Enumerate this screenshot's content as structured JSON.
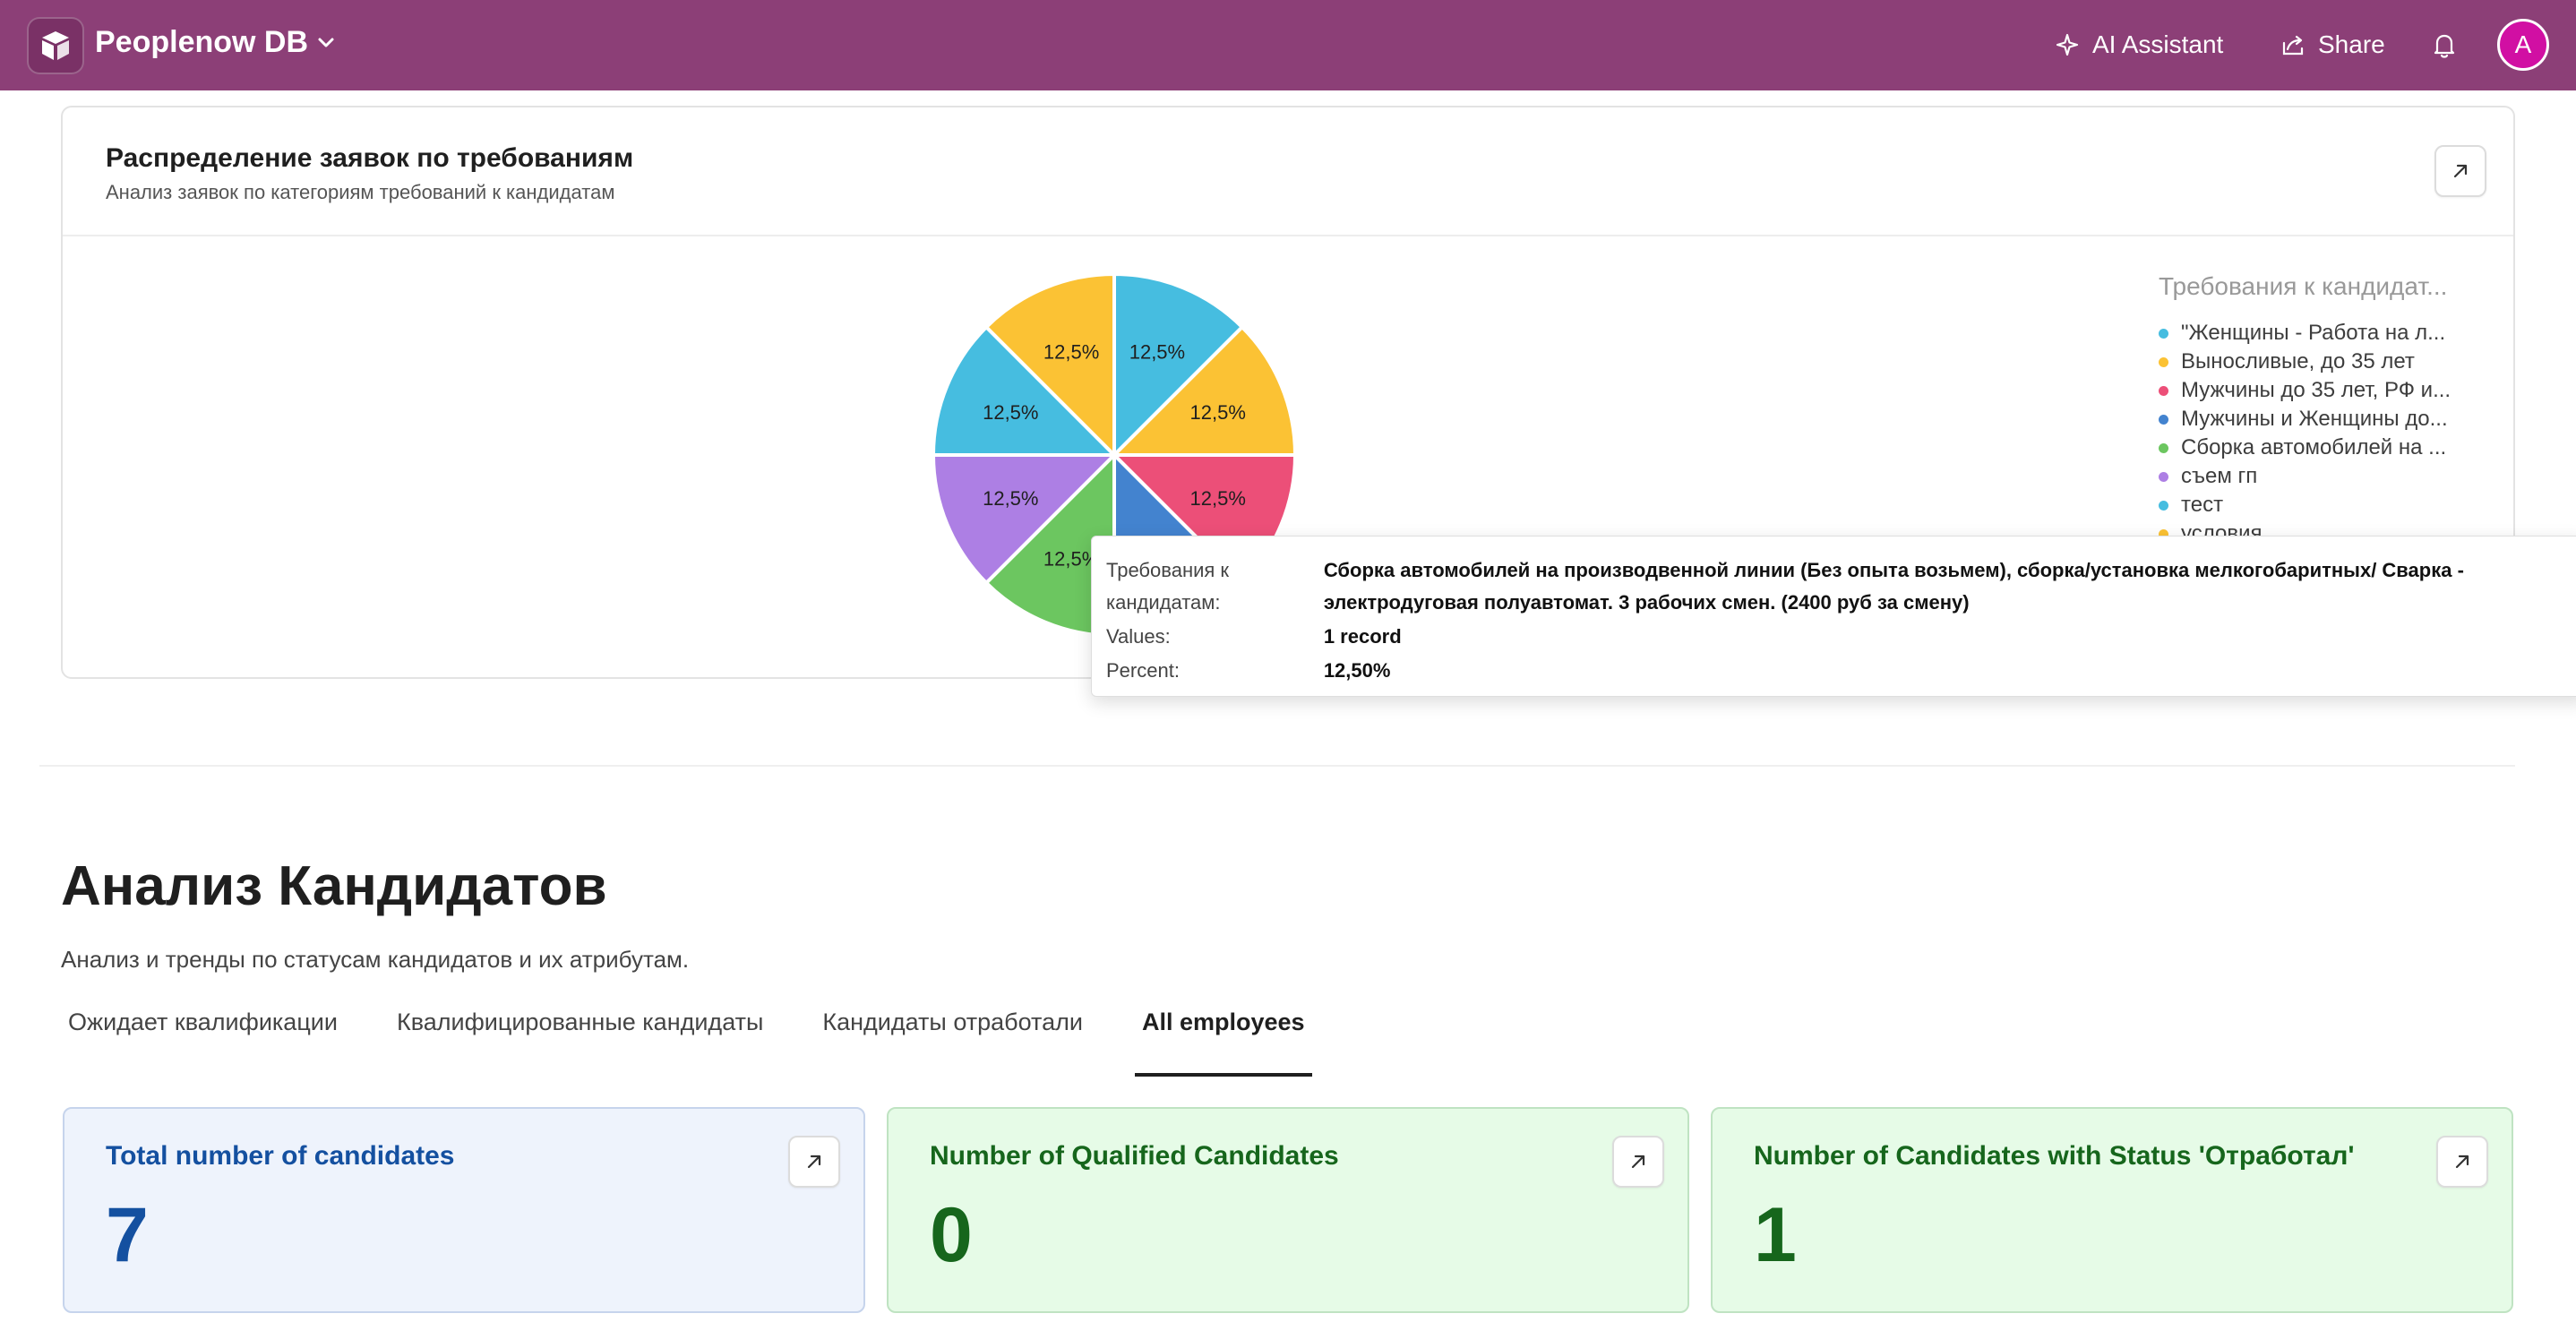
{
  "app": {
    "title": "Peoplenow DB",
    "ai_assistant_label": "AI Assistant",
    "share_label": "Share",
    "avatar_initial": "A"
  },
  "chart_card": {
    "title": "Распределение заявок по требованиям",
    "subtitle": "Анализ заявок по категориям требований к кандидатам",
    "legend_title": "Требования к кандидат...",
    "legend": [
      {
        "label": "\"Женщины - Работа на л...",
        "color": "#46bde0"
      },
      {
        "label": "Выносливые, до 35 лет",
        "color": "#fbc234"
      },
      {
        "label": "Мужчины до 35 лет, РФ и...",
        "color": "#ec4f78"
      },
      {
        "label": "Мужчины и Женщины до...",
        "color": "#4383cf"
      },
      {
        "label": "Сборка автомобилей на ...",
        "color": "#6cc660"
      },
      {
        "label": "съем гп",
        "color": "#ad7fe4"
      },
      {
        "label": "тест",
        "color": "#46bde0"
      },
      {
        "label": "условия",
        "color": "#fbc234"
      }
    ]
  },
  "chart_data": {
    "type": "pie",
    "categories": [
      "\"Женщины - Работа на л...",
      "Выносливые, до 35 лет",
      "Мужчины до 35 лет, РФ и...",
      "Мужчины и Женщины до...",
      "Сборка автомобилей на ...",
      "съем гп",
      "тест",
      "условия"
    ],
    "values": [
      1,
      1,
      1,
      1,
      1,
      1,
      1,
      1
    ],
    "percent_labels": [
      "12,5%",
      "12,5%",
      "12,5%",
      "12,5%",
      "12,5%",
      "12,5%",
      "12,5%",
      "12,5%"
    ],
    "colors": [
      "#46bde0",
      "#fbc234",
      "#ec4f78",
      "#4383cf",
      "#6cc660",
      "#ad7fe4",
      "#46bde0",
      "#fbc234"
    ],
    "legend_position": "right"
  },
  "tooltip": {
    "label_category": "Требования к кандидатам:",
    "value_category": "Сборка автомобилей на производвенной линии (Без опыта возьмем), сборка/установка мелкогобаритных/ Сварка - электродуговая полуавтомат. 3 рабочих смен. (2400 руб за смену)",
    "label_values": "Values:",
    "value_values": "1 record",
    "label_percent": "Percent:",
    "value_percent": "12,50%"
  },
  "section": {
    "title": "Анализ Кандидатов",
    "subtitle": "Анализ и тренды по статусам кандидатов и их атрибутам.",
    "tabs": [
      {
        "label": "Ожидает квалификации"
      },
      {
        "label": "Квалифицированные кандидаты"
      },
      {
        "label": "Кандидаты отработали"
      },
      {
        "label": "All employees"
      }
    ]
  },
  "metrics": [
    {
      "title": "Total number of candidates",
      "value": "7"
    },
    {
      "title": "Number of Qualified Candidates",
      "value": "0"
    },
    {
      "title": "Number of Candidates with Status 'Отработал'",
      "value": "1"
    }
  ]
}
